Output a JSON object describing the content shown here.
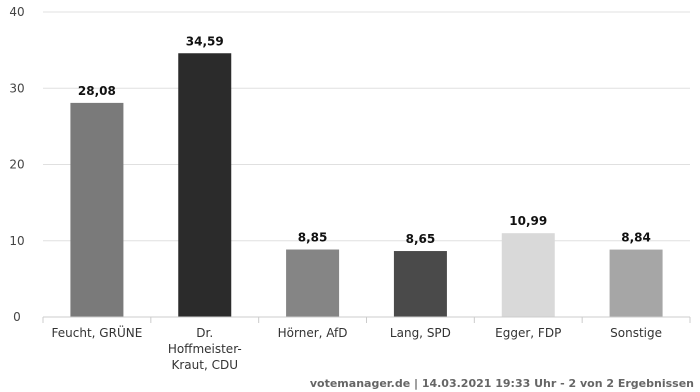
{
  "chart_data": {
    "type": "bar",
    "categories": [
      [
        "Feucht, GRÜNE"
      ],
      [
        "Dr.",
        "Hoffmeister-",
        "Kraut, CDU"
      ],
      [
        "Hörner, AfD"
      ],
      [
        "Lang, SPD"
      ],
      [
        "Egger, FDP"
      ],
      [
        "Sonstige"
      ]
    ],
    "values": [
      28.08,
      34.59,
      8.85,
      8.65,
      10.99,
      8.84
    ],
    "value_labels": [
      "28,08",
      "34,59",
      "8,85",
      "8,65",
      "10,99",
      "8,84"
    ],
    "colors": [
      "#7a7a7a",
      "#2b2b2b",
      "#858585",
      "#4a4a4a",
      "#d9d9d9",
      "#a6a6a6"
    ],
    "ylim": [
      0,
      40
    ],
    "yticks": [
      0,
      10,
      20,
      30,
      40
    ],
    "grid": true
  },
  "footer": {
    "source": "votemanager.de | 14.03.2021 19:33 Uhr - 2 von 2 Ergebnissen"
  }
}
